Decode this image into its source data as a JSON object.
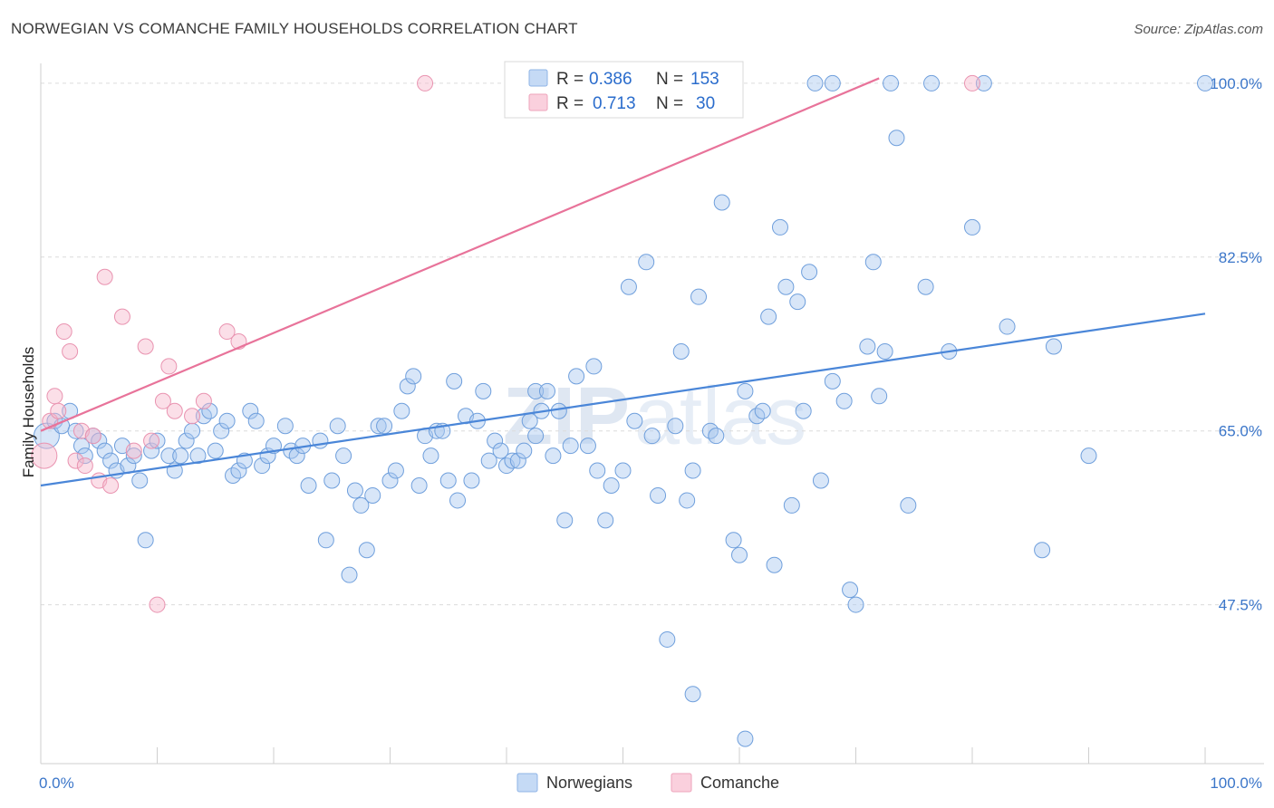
{
  "title": "NORWEGIAN VS COMANCHE FAMILY HOUSEHOLDS CORRELATION CHART",
  "source": "Source: ZipAtlas.com",
  "watermark": {
    "zip": "ZIP",
    "atlas": "atlas"
  },
  "legend": {
    "norwegians": {
      "r_label": "R =",
      "r_value": "0.386",
      "n_label": "N =",
      "n_value": "153",
      "color": "#a9c8ef"
    },
    "comanche": {
      "r_label": "R =",
      "r_value": "0.713",
      "n_label": "N =",
      "n_value": "30",
      "color": "#f5b8cb"
    }
  },
  "bottom_legend": [
    "Norwegians",
    "Comanche"
  ],
  "chart_data": {
    "type": "scatter",
    "title": "NORWEGIAN VS COMANCHE FAMILY HOUSEHOLDS CORRELATION CHART",
    "xlabel": "",
    "ylabel": "Family Households",
    "xlim": [
      0,
      100
    ],
    "ylim": [
      31.5,
      102
    ],
    "x_tick_labels": [
      "0.0%",
      "100.0%"
    ],
    "y_ticks": [
      47.5,
      65.0,
      82.5,
      100.0
    ],
    "y_tick_labels": [
      "47.5%",
      "65.0%",
      "82.5%",
      "100.0%"
    ],
    "grid": "horizontal-dashed",
    "legend_position": "top-center",
    "series": [
      {
        "name": "Norwegians",
        "color": "#4a86d8",
        "trend": {
          "x": [
            0,
            100
          ],
          "y": [
            59.5,
            76.8
          ]
        },
        "points": [
          [
            0.5,
            64.5
          ],
          [
            1.2,
            66
          ],
          [
            1.8,
            65.5
          ],
          [
            2.5,
            67
          ],
          [
            3,
            65
          ],
          [
            3.5,
            63.5
          ],
          [
            3.8,
            62.5
          ],
          [
            4.5,
            64.5
          ],
          [
            5,
            64
          ],
          [
            5.5,
            63
          ],
          [
            6,
            62
          ],
          [
            6.5,
            61
          ],
          [
            7,
            63.5
          ],
          [
            7.5,
            61.5
          ],
          [
            8,
            62.5
          ],
          [
            8.5,
            60
          ],
          [
            9,
            54
          ],
          [
            9.5,
            63
          ],
          [
            10,
            64
          ],
          [
            11,
            62.5
          ],
          [
            11.5,
            61
          ],
          [
            12,
            62.5
          ],
          [
            12.5,
            64
          ],
          [
            13,
            65
          ],
          [
            13.5,
            62.5
          ],
          [
            14,
            66.5
          ],
          [
            14.5,
            67
          ],
          [
            15,
            63
          ],
          [
            15.5,
            65
          ],
          [
            16,
            66
          ],
          [
            16.5,
            60.5
          ],
          [
            17,
            61
          ],
          [
            17.5,
            62
          ],
          [
            18,
            67
          ],
          [
            18.5,
            66
          ],
          [
            19,
            61.5
          ],
          [
            19.5,
            62.5
          ],
          [
            20,
            63.5
          ],
          [
            21,
            65.5
          ],
          [
            21.5,
            63
          ],
          [
            22,
            62.5
          ],
          [
            22.5,
            63.5
          ],
          [
            23,
            59.5
          ],
          [
            24,
            64
          ],
          [
            24.5,
            54
          ],
          [
            25,
            60
          ],
          [
            25.5,
            65.5
          ],
          [
            26,
            62.5
          ],
          [
            26.5,
            50.5
          ],
          [
            27,
            59
          ],
          [
            27.5,
            57.5
          ],
          [
            28,
            53
          ],
          [
            28.5,
            58.5
          ],
          [
            29,
            65.5
          ],
          [
            29.5,
            65.5
          ],
          [
            30,
            60
          ],
          [
            30.5,
            61
          ],
          [
            31,
            67
          ],
          [
            31.5,
            69.5
          ],
          [
            32,
            70.5
          ],
          [
            32.5,
            59.5
          ],
          [
            33,
            64.5
          ],
          [
            33.5,
            62.5
          ],
          [
            34,
            65
          ],
          [
            34.5,
            65
          ],
          [
            35,
            60
          ],
          [
            35.5,
            70
          ],
          [
            35.8,
            58
          ],
          [
            36.5,
            66.5
          ],
          [
            37,
            60
          ],
          [
            37.5,
            66
          ],
          [
            38,
            69
          ],
          [
            38.5,
            62
          ],
          [
            39,
            64
          ],
          [
            39.5,
            63
          ],
          [
            40,
            61.5
          ],
          [
            40.5,
            62
          ],
          [
            41,
            62
          ],
          [
            41.5,
            63
          ],
          [
            42,
            66
          ],
          [
            42.5,
            64.5
          ],
          [
            42.5,
            69
          ],
          [
            43,
            67
          ],
          [
            43.5,
            69
          ],
          [
            44,
            62.5
          ],
          [
            44.5,
            67
          ],
          [
            45,
            56
          ],
          [
            45.5,
            63.5
          ],
          [
            46,
            70.5
          ],
          [
            47,
            63.5
          ],
          [
            47.5,
            71.5
          ],
          [
            47.8,
            61
          ],
          [
            48.5,
            56
          ],
          [
            49,
            59.5
          ],
          [
            50,
            61
          ],
          [
            50.5,
            79.5
          ],
          [
            51,
            66
          ],
          [
            52,
            82
          ],
          [
            52.5,
            64.5
          ],
          [
            53,
            58.5
          ],
          [
            53.8,
            44
          ],
          [
            54.5,
            65.5
          ],
          [
            55,
            73
          ],
          [
            55.5,
            58
          ],
          [
            56,
            61
          ],
          [
            56.5,
            78.5
          ],
          [
            57.5,
            65
          ],
          [
            58,
            64.5
          ],
          [
            58.5,
            88
          ],
          [
            59.5,
            54
          ],
          [
            60,
            52.5
          ],
          [
            60.5,
            69
          ],
          [
            61.5,
            66.5
          ],
          [
            62,
            67
          ],
          [
            62.5,
            76.5
          ],
          [
            63,
            51.5
          ],
          [
            63.5,
            85.5
          ],
          [
            64,
            79.5
          ],
          [
            64.5,
            57.5
          ],
          [
            65,
            78
          ],
          [
            65.5,
            67
          ],
          [
            66,
            81
          ],
          [
            66.5,
            100
          ],
          [
            67,
            60
          ],
          [
            68,
            100
          ],
          [
            68,
            70
          ],
          [
            69,
            68
          ],
          [
            69.5,
            49
          ],
          [
            70,
            47.5
          ],
          [
            71,
            73.5
          ],
          [
            71.5,
            82
          ],
          [
            72,
            68.5
          ],
          [
            72.5,
            73
          ],
          [
            73,
            100
          ],
          [
            73.5,
            94.5
          ],
          [
            74.5,
            57.5
          ],
          [
            76,
            79.5
          ],
          [
            76.5,
            100
          ],
          [
            78,
            73
          ],
          [
            80,
            85.5
          ],
          [
            81,
            100
          ],
          [
            83,
            75.5
          ],
          [
            86,
            53
          ],
          [
            87,
            73.5
          ],
          [
            90,
            62.5
          ],
          [
            100,
            100
          ],
          [
            56,
            38.5
          ],
          [
            60.5,
            34
          ]
        ]
      },
      {
        "name": "Comanche",
        "color": "#e8739a",
        "trend": {
          "x": [
            0,
            72
          ],
          "y": [
            65.0,
            100.5
          ]
        },
        "points": [
          [
            0.3,
            62.5
          ],
          [
            0.8,
            66
          ],
          [
            1.2,
            68.5
          ],
          [
            1.5,
            67
          ],
          [
            2,
            75
          ],
          [
            2.5,
            73
          ],
          [
            3,
            62
          ],
          [
            3.5,
            65
          ],
          [
            3.8,
            61.5
          ],
          [
            4.5,
            64.5
          ],
          [
            5,
            60
          ],
          [
            5.5,
            80.5
          ],
          [
            6,
            59.5
          ],
          [
            7,
            76.5
          ],
          [
            8,
            63
          ],
          [
            9,
            73.5
          ],
          [
            9.5,
            64
          ],
          [
            10,
            47.5
          ],
          [
            10.5,
            68
          ],
          [
            11,
            71.5
          ],
          [
            11.5,
            67
          ],
          [
            13,
            66.5
          ],
          [
            14,
            68
          ],
          [
            16,
            75
          ],
          [
            17,
            74
          ],
          [
            33,
            100
          ],
          [
            80,
            100
          ]
        ]
      }
    ]
  }
}
